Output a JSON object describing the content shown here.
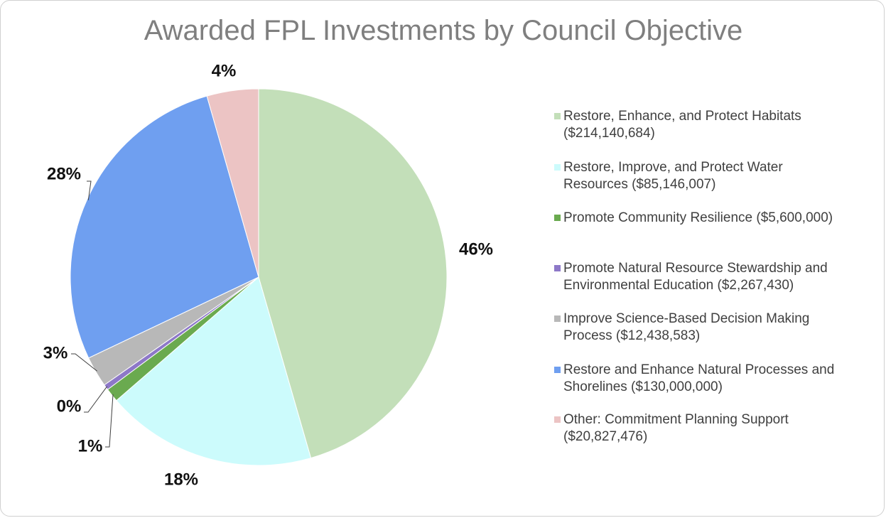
{
  "chart_data": {
    "type": "pie",
    "title": "Awarded FPL Investments by Council Objective",
    "categories": [
      "Restore, Enhance, and Protect Habitats ($214,140,684)",
      "Restore, Improve, and Protect Water Resources ($85,146,007)",
      "Promote Community Resilience ($5,600,000)",
      "Promote Natural Resource Stewardship and Environmental Education ($2,267,430)",
      "Improve Science-Based Decision Making Process ($12,438,583)",
      "Restore and Enhance Natural Processes and Shorelines ($130,000,000)",
      "Other: Commitment Planning Support ($20,827,476)"
    ],
    "values": [
      45.52,
      18.1,
      1.19,
      0.48,
      2.64,
      27.63,
      4.43
    ],
    "value_labels": [
      "46%",
      "18%",
      "1%",
      "0%",
      "3%",
      "28%",
      "4%"
    ],
    "colors": [
      "#c3dfb9",
      "#ccfbfc",
      "#6aaa4f",
      "#8d78c8",
      "#b8b8b8",
      "#6f9ff0",
      "#ecc4c4"
    ],
    "legend": "right"
  }
}
